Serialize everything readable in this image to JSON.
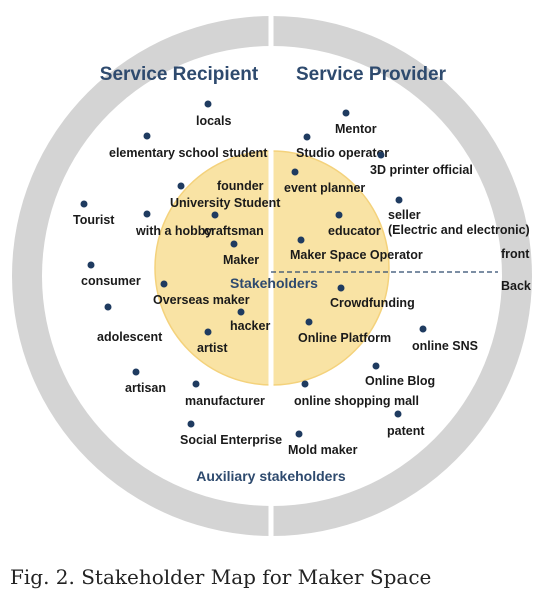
{
  "headings": {
    "left": "Service Recipient",
    "right": "Service Provider",
    "center": "Stakeholders",
    "outer": "Auxiliary stakeholders",
    "front": "front",
    "back": "Back"
  },
  "caption": "Fig. 2. Stakeholder Map for Maker Space",
  "colors": {
    "outer_ring": "#d4d4d4",
    "inner_disc": "#ffffff",
    "core": "#f9e3a4",
    "core_edge": "#f4d27c",
    "dot": "#1f3b60",
    "heading": "#2e4a6e"
  },
  "stakeholders": [
    {
      "label": "locals"
    },
    {
      "label": "elementary school student"
    },
    {
      "label": "Tourist"
    },
    {
      "label": "founder"
    },
    {
      "label": "University Student"
    },
    {
      "label": "with a hobby"
    },
    {
      "label": "craftsman"
    },
    {
      "label": "Maker"
    },
    {
      "label": "consumer"
    },
    {
      "label": "Overseas maker"
    },
    {
      "label": "adolescent"
    },
    {
      "label": "hacker"
    },
    {
      "label": "artist"
    },
    {
      "label": "artisan"
    },
    {
      "label": "manufacturer"
    },
    {
      "label": "Social Enterprise"
    },
    {
      "label": "Mentor"
    },
    {
      "label": "Studio operator"
    },
    {
      "label": "3D printer official"
    },
    {
      "label": "event planner"
    },
    {
      "label": "educator"
    },
    {
      "label": "seller"
    },
    {
      "label": "(Electric and electronic)"
    },
    {
      "label": "Maker Space Operator"
    },
    {
      "label": "Crowdfunding"
    },
    {
      "label": "Online Platform"
    },
    {
      "label": "online SNS"
    },
    {
      "label": "Online Blog"
    },
    {
      "label": "online shopping mall"
    },
    {
      "label": "patent"
    },
    {
      "label": "Mold maker"
    }
  ]
}
